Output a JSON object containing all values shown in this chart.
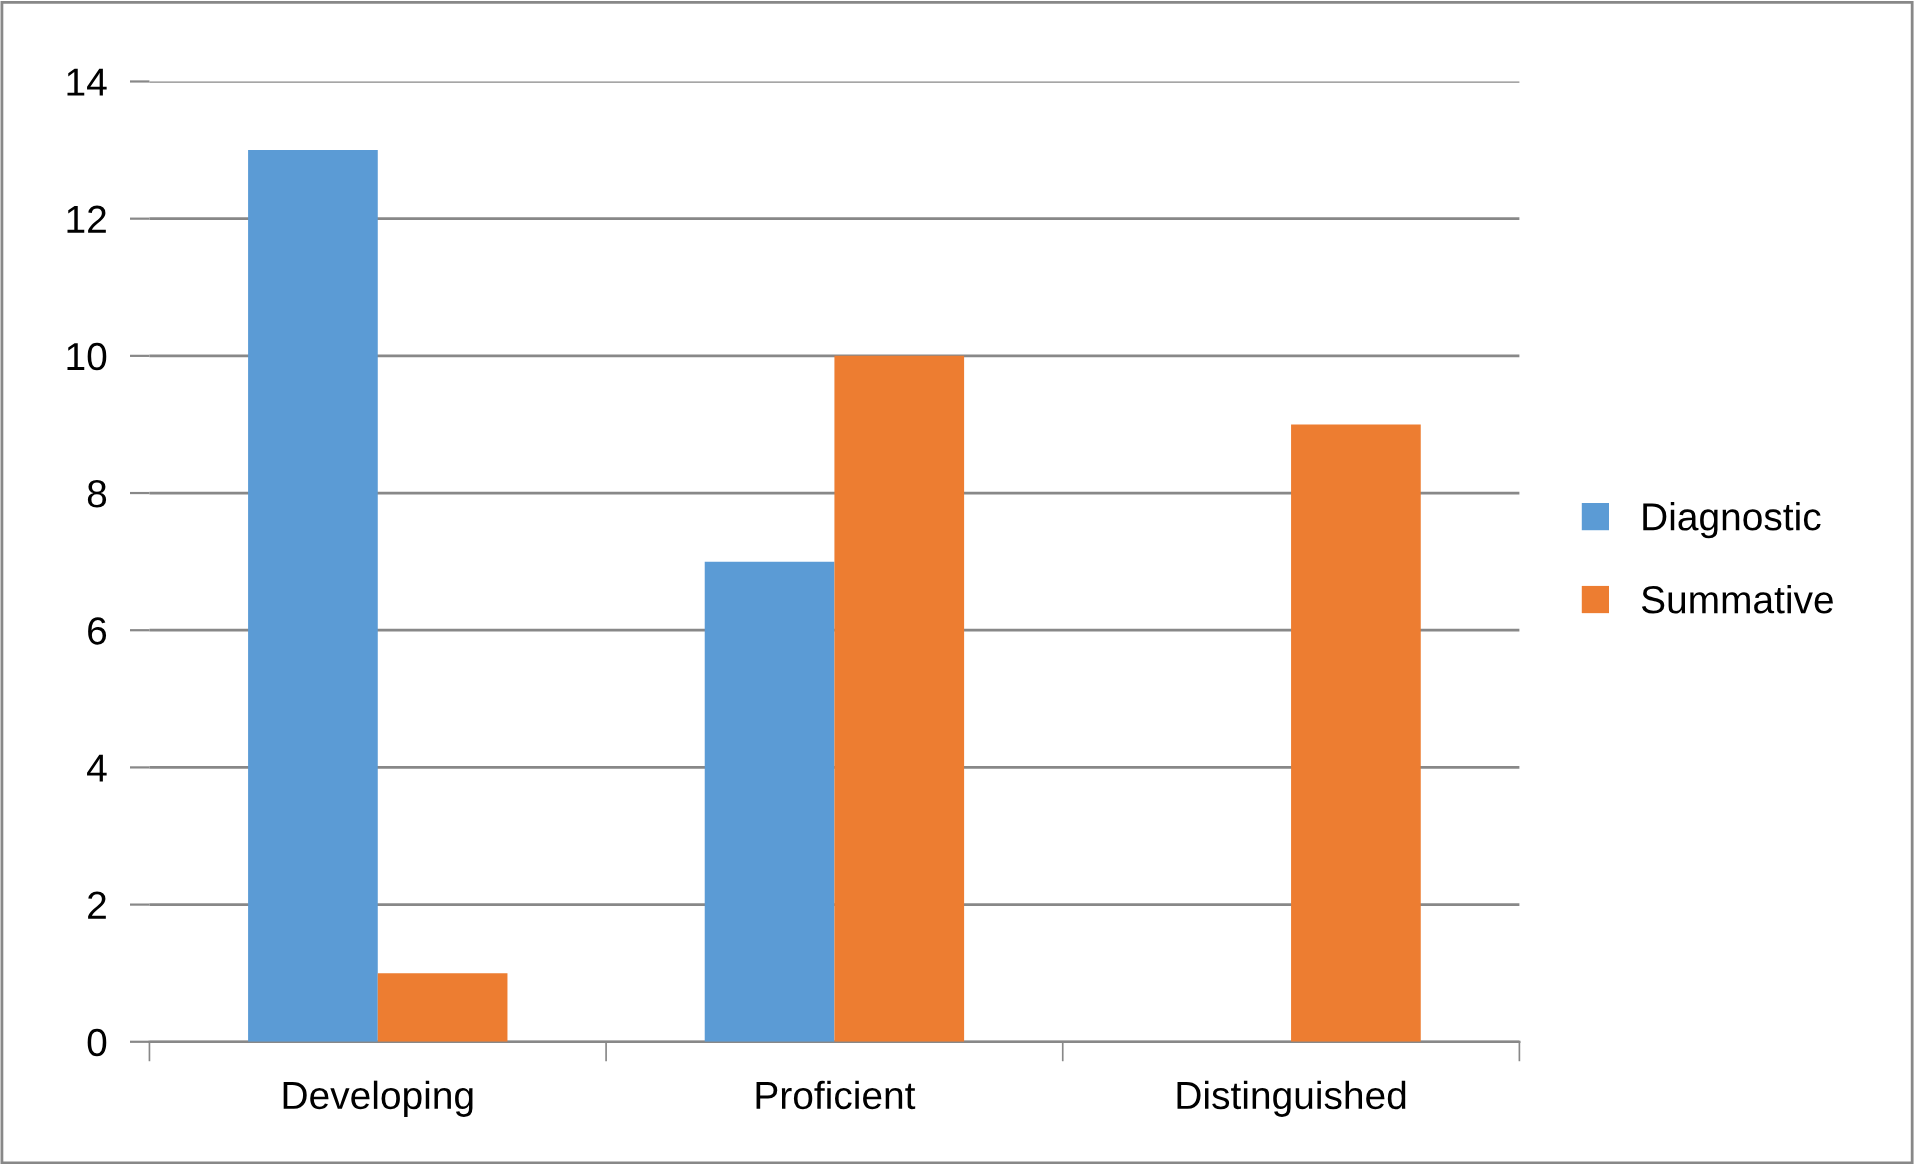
{
  "chart_data": {
    "type": "bar",
    "categories": [
      "Developing",
      "Proficient",
      "Distinguished"
    ],
    "series": [
      {
        "name": "Diagnostic",
        "color": "#5b9bd5",
        "values": [
          13,
          7,
          0
        ]
      },
      {
        "name": "Summative",
        "color": "#ed7d31",
        "values": [
          1,
          10,
          9
        ]
      }
    ],
    "ylim": [
      0,
      14
    ],
    "yticks": [
      0,
      2,
      4,
      6,
      8,
      10,
      12,
      14
    ],
    "grid": "y",
    "legend": "right"
  }
}
